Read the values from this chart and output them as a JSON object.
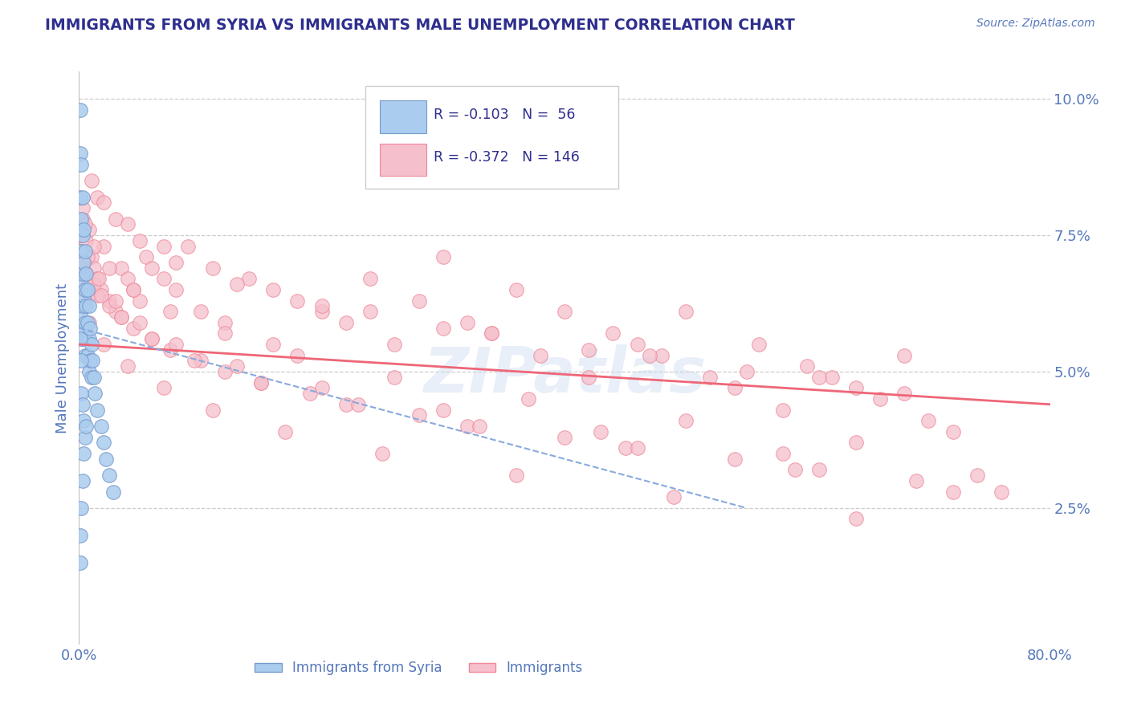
{
  "title": "IMMIGRANTS FROM SYRIA VS IMMIGRANTS MALE UNEMPLOYMENT CORRELATION CHART",
  "source": "Source: ZipAtlas.com",
  "ylabel": "Male Unemployment",
  "watermark_text": "ZIPatlas",
  "background_color": "#ffffff",
  "grid_color": "#cccccc",
  "title_color": "#2e2e8e",
  "axis_color": "#5577bb",
  "blue_color_face": "#aaccee",
  "blue_color_edge": "#7799cc",
  "pink_color_face": "#f5c0cb",
  "pink_color_edge": "#ee8899",
  "blue_line_color": "#88aadd",
  "pink_line_color": "#ee6677",
  "blue_scatter_x": [
    0.001,
    0.001,
    0.001,
    0.001,
    0.002,
    0.002,
    0.002,
    0.002,
    0.002,
    0.003,
    0.003,
    0.003,
    0.003,
    0.003,
    0.004,
    0.004,
    0.004,
    0.004,
    0.005,
    0.005,
    0.005,
    0.005,
    0.006,
    0.006,
    0.006,
    0.007,
    0.007,
    0.007,
    0.008,
    0.008,
    0.008,
    0.009,
    0.009,
    0.01,
    0.01,
    0.011,
    0.012,
    0.013,
    0.015,
    0.018,
    0.02,
    0.022,
    0.025,
    0.028,
    0.001,
    0.002,
    0.002,
    0.003,
    0.004,
    0.005,
    0.001,
    0.001,
    0.002,
    0.003,
    0.004,
    0.006
  ],
  "blue_scatter_y": [
    0.098,
    0.09,
    0.082,
    0.076,
    0.088,
    0.078,
    0.072,
    0.066,
    0.06,
    0.082,
    0.075,
    0.068,
    0.062,
    0.056,
    0.076,
    0.07,
    0.064,
    0.058,
    0.072,
    0.065,
    0.059,
    0.053,
    0.068,
    0.062,
    0.056,
    0.065,
    0.059,
    0.053,
    0.062,
    0.056,
    0.05,
    0.058,
    0.052,
    0.055,
    0.049,
    0.052,
    0.049,
    0.046,
    0.043,
    0.04,
    0.037,
    0.034,
    0.031,
    0.028,
    0.056,
    0.052,
    0.046,
    0.044,
    0.041,
    0.038,
    0.015,
    0.02,
    0.025,
    0.03,
    0.035,
    0.04
  ],
  "pink_scatter_x": [
    0.001,
    0.002,
    0.003,
    0.004,
    0.005,
    0.006,
    0.007,
    0.008,
    0.01,
    0.012,
    0.015,
    0.018,
    0.02,
    0.025,
    0.03,
    0.035,
    0.04,
    0.045,
    0.05,
    0.055,
    0.06,
    0.07,
    0.08,
    0.09,
    0.1,
    0.12,
    0.14,
    0.16,
    0.18,
    0.2,
    0.22,
    0.24,
    0.26,
    0.28,
    0.3,
    0.32,
    0.34,
    0.36,
    0.38,
    0.4,
    0.42,
    0.44,
    0.46,
    0.48,
    0.5,
    0.52,
    0.54,
    0.56,
    0.58,
    0.6,
    0.62,
    0.64,
    0.66,
    0.68,
    0.7,
    0.72,
    0.003,
    0.008,
    0.015,
    0.03,
    0.05,
    0.08,
    0.13,
    0.2,
    0.3,
    0.42,
    0.55,
    0.68,
    0.005,
    0.012,
    0.025,
    0.045,
    0.075,
    0.12,
    0.18,
    0.26,
    0.37,
    0.5,
    0.64,
    0.01,
    0.02,
    0.04,
    0.07,
    0.11,
    0.16,
    0.24,
    0.34,
    0.47,
    0.61,
    0.015,
    0.035,
    0.06,
    0.1,
    0.15,
    0.22,
    0.32,
    0.45,
    0.59,
    0.72,
    0.008,
    0.02,
    0.04,
    0.07,
    0.11,
    0.17,
    0.25,
    0.36,
    0.49,
    0.64,
    0.004,
    0.012,
    0.025,
    0.045,
    0.075,
    0.12,
    0.19,
    0.28,
    0.4,
    0.54,
    0.69,
    0.006,
    0.018,
    0.035,
    0.06,
    0.095,
    0.15,
    0.23,
    0.33,
    0.46,
    0.61,
    0.76,
    0.002,
    0.007,
    0.016,
    0.03,
    0.05,
    0.08,
    0.13,
    0.2,
    0.3,
    0.43,
    0.58,
    0.74
  ],
  "pink_scatter_y": [
    0.075,
    0.072,
    0.078,
    0.07,
    0.068,
    0.074,
    0.066,
    0.064,
    0.071,
    0.069,
    0.067,
    0.065,
    0.073,
    0.063,
    0.061,
    0.069,
    0.067,
    0.065,
    0.063,
    0.071,
    0.069,
    0.067,
    0.065,
    0.073,
    0.061,
    0.059,
    0.067,
    0.055,
    0.063,
    0.061,
    0.059,
    0.067,
    0.055,
    0.063,
    0.071,
    0.059,
    0.057,
    0.065,
    0.053,
    0.061,
    0.049,
    0.057,
    0.055,
    0.053,
    0.061,
    0.049,
    0.047,
    0.055,
    0.043,
    0.051,
    0.049,
    0.047,
    0.045,
    0.053,
    0.041,
    0.039,
    0.08,
    0.076,
    0.082,
    0.078,
    0.074,
    0.07,
    0.066,
    0.062,
    0.058,
    0.054,
    0.05,
    0.046,
    0.077,
    0.073,
    0.069,
    0.065,
    0.061,
    0.057,
    0.053,
    0.049,
    0.045,
    0.041,
    0.037,
    0.085,
    0.081,
    0.077,
    0.073,
    0.069,
    0.065,
    0.061,
    0.057,
    0.053,
    0.049,
    0.064,
    0.06,
    0.056,
    0.052,
    0.048,
    0.044,
    0.04,
    0.036,
    0.032,
    0.028,
    0.059,
    0.055,
    0.051,
    0.047,
    0.043,
    0.039,
    0.035,
    0.031,
    0.027,
    0.023,
    0.07,
    0.066,
    0.062,
    0.058,
    0.054,
    0.05,
    0.046,
    0.042,
    0.038,
    0.034,
    0.03,
    0.068,
    0.064,
    0.06,
    0.056,
    0.052,
    0.048,
    0.044,
    0.04,
    0.036,
    0.032,
    0.028,
    0.075,
    0.071,
    0.067,
    0.063,
    0.059,
    0.055,
    0.051,
    0.047,
    0.043,
    0.039,
    0.035,
    0.031
  ],
  "blue_line_x": [
    0.0,
    0.55
  ],
  "blue_line_y": [
    0.058,
    0.025
  ],
  "pink_line_x": [
    0.0,
    0.8
  ],
  "pink_line_y": [
    0.055,
    0.044
  ],
  "xlim": [
    0.0,
    0.8
  ],
  "ylim": [
    0.0,
    0.105
  ],
  "yticks": [
    0.025,
    0.05,
    0.075,
    0.1
  ],
  "ytick_labels": [
    "2.5%",
    "5.0%",
    "7.5%",
    "10.0%"
  ],
  "xticks": [
    0.0,
    0.8
  ],
  "xtick_labels": [
    "0.0%",
    "80.0%"
  ]
}
